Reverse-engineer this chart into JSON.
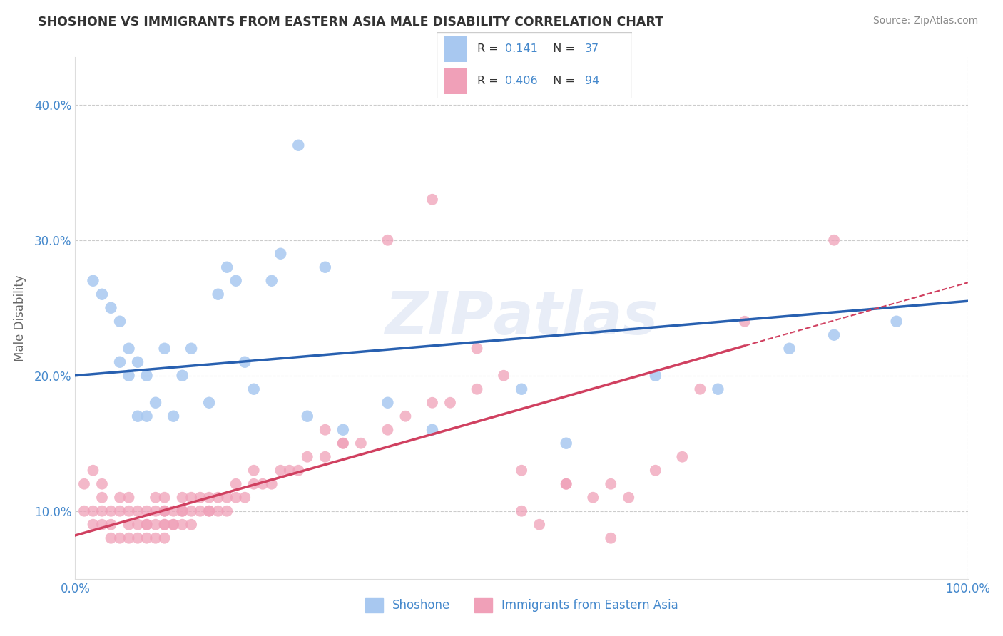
{
  "title": "SHOSHONE VS IMMIGRANTS FROM EASTERN ASIA MALE DISABILITY CORRELATION CHART",
  "source_text": "Source: ZipAtlas.com",
  "ylabel": "Male Disability",
  "xlim": [
    0.0,
    1.0
  ],
  "ylim": [
    0.05,
    0.435
  ],
  "yticks": [
    0.1,
    0.2,
    0.3,
    0.4
  ],
  "ytick_labels": [
    "10.0%",
    "20.0%",
    "30.0%",
    "40.0%"
  ],
  "xticks": [
    0.0,
    0.25,
    0.5,
    0.75,
    1.0
  ],
  "xtick_labels": [
    "0.0%",
    "",
    "",
    "",
    "100.0%"
  ],
  "legend_R1": "0.141",
  "legend_N1": "37",
  "legend_R2": "0.406",
  "legend_N2": "94",
  "shoshone_color": "#a8c8f0",
  "eastern_asia_color": "#f0a0b8",
  "line_color_shoshone": "#2860b0",
  "line_color_eastern": "#d04060",
  "background_color": "#ffffff",
  "grid_color": "#cccccc",
  "shoshone_x": [
    0.02,
    0.03,
    0.04,
    0.05,
    0.05,
    0.06,
    0.06,
    0.07,
    0.07,
    0.08,
    0.08,
    0.09,
    0.1,
    0.11,
    0.12,
    0.13,
    0.15,
    0.16,
    0.17,
    0.18,
    0.19,
    0.2,
    0.22,
    0.23,
    0.25,
    0.26,
    0.28,
    0.3,
    0.35,
    0.4,
    0.5,
    0.55,
    0.65,
    0.72,
    0.8,
    0.85,
    0.92
  ],
  "shoshone_y": [
    0.27,
    0.26,
    0.25,
    0.21,
    0.24,
    0.2,
    0.22,
    0.17,
    0.21,
    0.17,
    0.2,
    0.18,
    0.22,
    0.17,
    0.2,
    0.22,
    0.18,
    0.26,
    0.28,
    0.27,
    0.21,
    0.19,
    0.27,
    0.29,
    0.37,
    0.17,
    0.28,
    0.16,
    0.18,
    0.16,
    0.19,
    0.15,
    0.2,
    0.19,
    0.22,
    0.23,
    0.24
  ],
  "eastern_x": [
    0.01,
    0.01,
    0.02,
    0.02,
    0.02,
    0.03,
    0.03,
    0.03,
    0.03,
    0.04,
    0.04,
    0.04,
    0.05,
    0.05,
    0.05,
    0.06,
    0.06,
    0.06,
    0.06,
    0.07,
    0.07,
    0.07,
    0.08,
    0.08,
    0.08,
    0.08,
    0.09,
    0.09,
    0.09,
    0.09,
    0.1,
    0.1,
    0.1,
    0.1,
    0.1,
    0.1,
    0.11,
    0.11,
    0.11,
    0.12,
    0.12,
    0.12,
    0.12,
    0.13,
    0.13,
    0.13,
    0.14,
    0.14,
    0.15,
    0.15,
    0.15,
    0.16,
    0.16,
    0.17,
    0.17,
    0.18,
    0.18,
    0.19,
    0.2,
    0.2,
    0.21,
    0.22,
    0.23,
    0.24,
    0.25,
    0.26,
    0.28,
    0.3,
    0.32,
    0.35,
    0.37,
    0.4,
    0.42,
    0.45,
    0.48,
    0.5,
    0.52,
    0.55,
    0.58,
    0.6,
    0.62,
    0.65,
    0.68,
    0.7,
    0.35,
    0.4,
    0.45,
    0.5,
    0.55,
    0.6,
    0.28,
    0.3,
    0.75,
    0.85
  ],
  "eastern_y": [
    0.1,
    0.12,
    0.09,
    0.1,
    0.13,
    0.09,
    0.1,
    0.11,
    0.12,
    0.08,
    0.09,
    0.1,
    0.08,
    0.1,
    0.11,
    0.08,
    0.09,
    0.1,
    0.11,
    0.08,
    0.09,
    0.1,
    0.08,
    0.09,
    0.09,
    0.1,
    0.08,
    0.09,
    0.1,
    0.11,
    0.08,
    0.09,
    0.09,
    0.1,
    0.1,
    0.11,
    0.09,
    0.09,
    0.1,
    0.09,
    0.1,
    0.1,
    0.11,
    0.09,
    0.1,
    0.11,
    0.1,
    0.11,
    0.1,
    0.1,
    0.11,
    0.1,
    0.11,
    0.1,
    0.11,
    0.11,
    0.12,
    0.11,
    0.12,
    0.13,
    0.12,
    0.12,
    0.13,
    0.13,
    0.13,
    0.14,
    0.14,
    0.15,
    0.15,
    0.16,
    0.17,
    0.18,
    0.18,
    0.19,
    0.2,
    0.13,
    0.09,
    0.12,
    0.11,
    0.12,
    0.11,
    0.13,
    0.14,
    0.19,
    0.3,
    0.33,
    0.22,
    0.1,
    0.12,
    0.08,
    0.16,
    0.15,
    0.24,
    0.3
  ]
}
